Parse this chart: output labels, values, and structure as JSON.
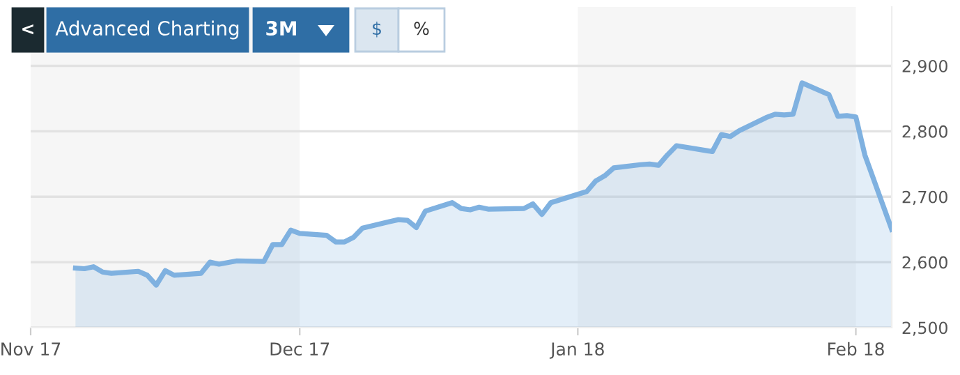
{
  "chart_data": {
    "type": "area",
    "x": [
      "2017-11-06",
      "2017-11-07",
      "2017-11-08",
      "2017-11-09",
      "2017-11-10",
      "2017-11-13",
      "2017-11-14",
      "2017-11-15",
      "2017-11-16",
      "2017-11-17",
      "2017-11-20",
      "2017-11-21",
      "2017-11-22",
      "2017-11-24",
      "2017-11-27",
      "2017-11-28",
      "2017-11-29",
      "2017-11-30",
      "2017-12-01",
      "2017-12-04",
      "2017-12-05",
      "2017-12-06",
      "2017-12-07",
      "2017-12-08",
      "2017-12-11",
      "2017-12-12",
      "2017-12-13",
      "2017-12-14",
      "2017-12-15",
      "2017-12-18",
      "2017-12-19",
      "2017-12-20",
      "2017-12-21",
      "2017-12-22",
      "2017-12-26",
      "2017-12-27",
      "2017-12-28",
      "2017-12-29",
      "2018-01-02",
      "2018-01-03",
      "2018-01-04",
      "2018-01-05",
      "2018-01-08",
      "2018-01-09",
      "2018-01-10",
      "2018-01-11",
      "2018-01-12",
      "2018-01-16",
      "2018-01-17",
      "2018-01-18",
      "2018-01-19",
      "2018-01-22",
      "2018-01-23",
      "2018-01-24",
      "2018-01-25",
      "2018-01-26",
      "2018-01-29",
      "2018-01-30",
      "2018-01-31",
      "2018-02-01",
      "2018-02-02",
      "2018-02-05"
    ],
    "series": [
      {
        "color": "#7fb1e0",
        "values": [
          2591,
          2590,
          2593,
          2585,
          2583,
          2586,
          2580,
          2565,
          2587,
          2580,
          2583,
          2600,
          2597,
          2602,
          2601,
          2627,
          2627,
          2649,
          2644,
          2641,
          2631,
          2631,
          2638,
          2652,
          2662,
          2665,
          2664,
          2653,
          2678,
          2691,
          2682,
          2680,
          2684,
          2681,
          2682,
          2689,
          2673,
          2691,
          2708,
          2724,
          2732,
          2744,
          2749,
          2750,
          2748,
          2764,
          2778,
          2769,
          2795,
          2792,
          2801,
          2821,
          2826,
          2825,
          2826,
          2874,
          2856,
          2823,
          2824,
          2822,
          2764,
          2650
        ]
      }
    ],
    "xlim": [
      "2017-11-01",
      "2018-02-05"
    ],
    "xticks": [
      {
        "value": "2017-11-01",
        "label": "Nov 17"
      },
      {
        "value": "2017-12-01",
        "label": "Dec 17"
      },
      {
        "value": "2018-01-01",
        "label": "Jan 18"
      },
      {
        "value": "2018-02-01",
        "label": "Feb 18"
      }
    ],
    "ylim": [
      2500,
      2990
    ],
    "yticks": [
      {
        "value": 2500,
        "label": "2,500"
      },
      {
        "value": 2600,
        "label": "2,600"
      },
      {
        "value": 2700,
        "label": "2,700"
      },
      {
        "value": 2800,
        "label": "2,800"
      },
      {
        "value": 2900,
        "label": "2,900"
      }
    ],
    "grid": "y",
    "bands": [
      {
        "axis": "x",
        "from": "2017-11-01",
        "to": "2017-12-01",
        "color": "#f6f6f6"
      },
      {
        "axis": "x",
        "from": "2018-01-01",
        "to": "2018-02-01",
        "color": "#f6f6f6"
      }
    ],
    "annotations": [
      "<",
      "Advanced Charting",
      "3M",
      "$",
      "%"
    ]
  }
}
